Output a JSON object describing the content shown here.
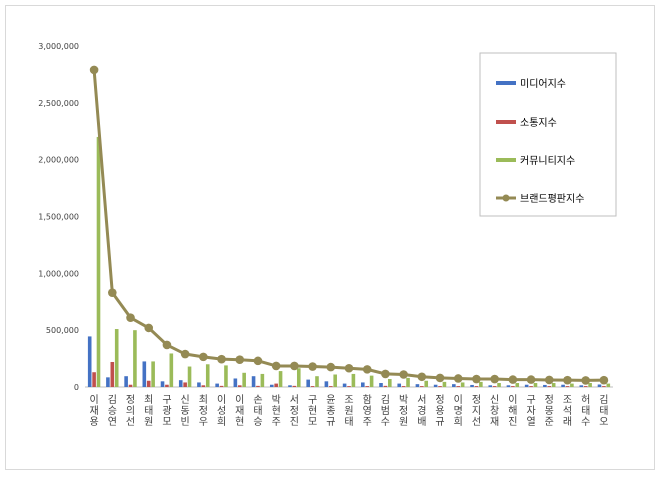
{
  "chart_data": {
    "type": "bar",
    "title": "",
    "xlabel": "",
    "ylabel": "",
    "ylim": [
      0,
      3000000
    ],
    "yticks": [
      "0",
      "500,000",
      "1,000,000",
      "1,500,000",
      "2,000,000",
      "2,500,000",
      "3,000,000"
    ],
    "legend_position": "top-right",
    "grid": false,
    "categories": [
      "이재용",
      "김승연",
      "정의선",
      "최태원",
      "구광모",
      "신동빈",
      "최정우",
      "이성희",
      "이재현",
      "손태승",
      "박현주",
      "서정진",
      "구현모",
      "윤종규",
      "조원태",
      "함영주",
      "김범수",
      "박정원",
      "서경배",
      "정용규",
      "이명희",
      "정지선",
      "신창재",
      "이해진",
      "구자열",
      "정몽준",
      "조석래",
      "허태수",
      "김태오"
    ],
    "series": [
      {
        "name": "미디어지수",
        "color": "#4472c4",
        "values": [
          445000,
          85000,
          95000,
          225000,
          50000,
          60000,
          40000,
          30000,
          75000,
          95000,
          20000,
          15000,
          65000,
          50000,
          30000,
          40000,
          35000,
          30000,
          25000,
          20000,
          25000,
          18000,
          15000,
          15000,
          20000,
          18000,
          20000,
          15000,
          22000
        ]
      },
      {
        "name": "소통지수",
        "color": "#c0504d",
        "values": [
          130000,
          220000,
          20000,
          55000,
          20000,
          40000,
          15000,
          10000,
          15000,
          10000,
          30000,
          10000,
          8000,
          8000,
          8000,
          8000,
          10000,
          8000,
          8000,
          8000,
          8000,
          8000,
          8000,
          8000,
          8000,
          8000,
          8000,
          8000,
          8000
        ]
      },
      {
        "name": "커뮤니티지수",
        "color": "#9bbb59",
        "values": [
          2200000,
          510000,
          500000,
          225000,
          295000,
          180000,
          200000,
          190000,
          125000,
          115000,
          140000,
          165000,
          95000,
          110000,
          115000,
          100000,
          70000,
          80000,
          55000,
          45000,
          40000,
          45000,
          35000,
          35000,
          35000,
          35000,
          30000,
          35000,
          30000
        ]
      },
      {
        "name": "브랜드평판지수",
        "color": "#948a54",
        "type": "line",
        "values": [
          2790000,
          830000,
          610000,
          520000,
          370000,
          290000,
          265000,
          245000,
          240000,
          230000,
          185000,
          185000,
          180000,
          175000,
          165000,
          155000,
          115000,
          110000,
          90000,
          80000,
          75000,
          70000,
          70000,
          65000,
          65000,
          62000,
          60000,
          58000,
          60000
        ]
      }
    ]
  }
}
